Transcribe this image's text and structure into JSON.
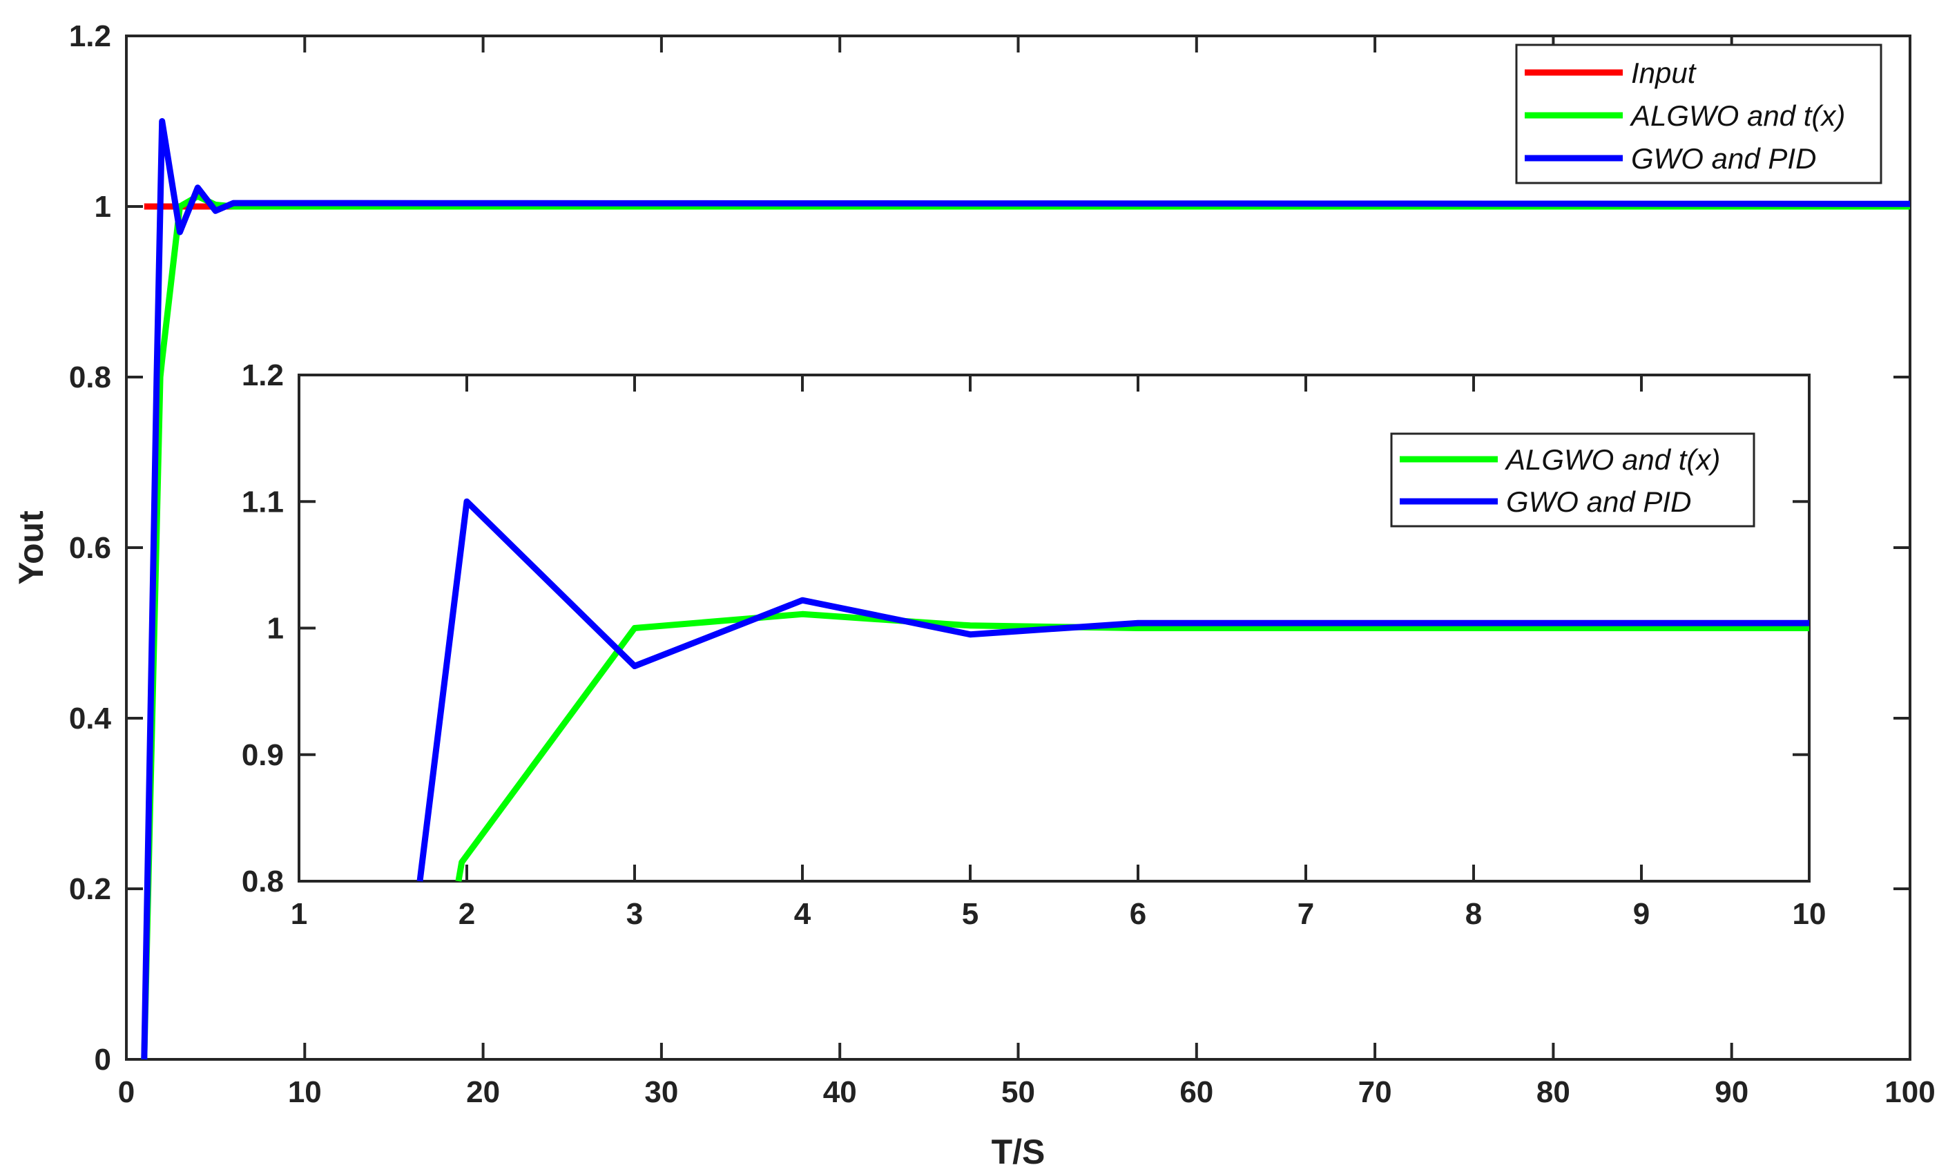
{
  "chart_data": [
    {
      "id": "main",
      "type": "line",
      "xlabel": "T/S",
      "ylabel": "Yout",
      "xlim": [
        0,
        100
      ],
      "ylim": [
        0,
        1.2
      ],
      "xticks": [
        0,
        10,
        20,
        30,
        40,
        50,
        60,
        70,
        80,
        90,
        100
      ],
      "yticks": [
        0,
        0.2,
        0.4,
        0.6,
        0.8,
        1,
        1.2
      ],
      "xtick_labels": [
        "0",
        "10",
        "20",
        "30",
        "40",
        "50",
        "60",
        "70",
        "80",
        "90",
        "100"
      ],
      "ytick_labels": [
        "0",
        "0.2",
        "0.4",
        "0.6",
        "0.8",
        "1",
        "1.2"
      ],
      "grid": false,
      "legend_position": "top-right",
      "series": [
        {
          "name": "Input",
          "color": "#ff0000",
          "x": [
            1,
            100
          ],
          "y": [
            1,
            1
          ]
        },
        {
          "name": "ALGWO and t(x)",
          "color": "#00ff00",
          "x": [
            1,
            1.9,
            2,
            3,
            4,
            5,
            6,
            10,
            100
          ],
          "y": [
            0,
            0.8,
            0.82,
            1,
            1.012,
            1.002,
            1,
            1,
            1
          ]
        },
        {
          "name": "GWO and PID",
          "color": "#0000ff",
          "x": [
            1,
            1.7,
            2,
            3,
            4,
            5,
            6,
            10,
            100
          ],
          "y": [
            0,
            0.8,
            1.1,
            0.97,
            1.022,
            0.995,
            1.004,
            1.004,
            1.003
          ]
        }
      ]
    },
    {
      "id": "inset",
      "type": "line",
      "xlim": [
        1,
        10
      ],
      "ylim": [
        0.8,
        1.2
      ],
      "xticks": [
        1,
        2,
        3,
        4,
        5,
        6,
        7,
        8,
        9,
        10
      ],
      "yticks": [
        0.8,
        0.9,
        1,
        1.1,
        1.2
      ],
      "xtick_labels": [
        "1",
        "2",
        "3",
        "4",
        "5",
        "6",
        "7",
        "8",
        "9",
        "10"
      ],
      "ytick_labels": [
        "0.8",
        "0.9",
        "1",
        "1.1",
        "1.2"
      ],
      "grid": false,
      "legend_position": "top-right",
      "series": [
        {
          "name": "ALGWO and t(x)",
          "color": "#00ff00",
          "x": [
            1.95,
            1.97,
            3,
            4,
            5,
            6,
            10
          ],
          "y": [
            0.8,
            0.815,
            1,
            1.011,
            1.002,
            1,
            1
          ]
        },
        {
          "name": "GWO and PID",
          "color": "#0000ff",
          "x": [
            1.72,
            2,
            3,
            4,
            5,
            6,
            10
          ],
          "y": [
            0.8,
            1.1,
            0.97,
            1.022,
            0.995,
            1.004,
            1.004
          ]
        }
      ]
    }
  ]
}
